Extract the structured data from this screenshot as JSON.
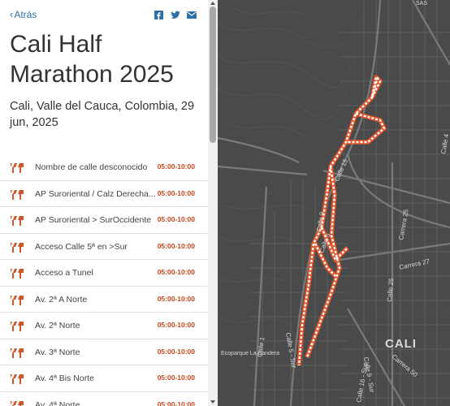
{
  "nav": {
    "back_label": "Atrás",
    "share_icons": [
      "facebook-icon",
      "twitter-icon",
      "email-icon"
    ]
  },
  "event": {
    "title": "Cali Half Marathon 2025",
    "subtitle": "Cali, Valle del Cauca, Colombia, 29 jun, 2025"
  },
  "closures": [
    {
      "name": "Nombre de calle desconocido",
      "time": "05:00-10:00"
    },
    {
      "name": "AP Suroriental / Calz Derecha...",
      "time": "05:00-10:00"
    },
    {
      "name": "AP Suroriental > SurOccidente",
      "time": "05:00-10:00"
    },
    {
      "name": "Acceso Calle 5ª en >Sur",
      "time": "05:00-10:00"
    },
    {
      "name": "Acceso a Tunel",
      "time": "05:00-10:00"
    },
    {
      "name": "Av. 2ª A Norte",
      "time": "05:00-10:00"
    },
    {
      "name": "Av. 2ª Norte",
      "time": "05:00-10:00"
    },
    {
      "name": "Av. 3ª Norte",
      "time": "05:00-10:00"
    },
    {
      "name": "Av. 4ª Bis Norte",
      "time": "05:00-10:00"
    },
    {
      "name": "Av. 4ª Norte",
      "time": "05:00-10:00"
    }
  ],
  "map": {
    "city_label": "CALI",
    "top_label": "SAS",
    "street_labels": [
      "Calle 15",
      "Calle 9",
      "Calle 5",
      "Carrera 25",
      "Carrera 27",
      "Calle 25",
      "Calle 1",
      "Calle 5 - Sur",
      "Calle 9 - Sur",
      "Calle 16 - Sur",
      "Carrera 50",
      "Ecoparque La Bandera",
      "Calle 4"
    ],
    "colors": {
      "background": "#4a4a4a",
      "route": "#ffffff",
      "route_border": "#e0522a",
      "roads": "#6a6a6a"
    }
  },
  "theme": {
    "accent": "#2f6fa8",
    "time_color": "#c8471c",
    "icon_color": "#d4542a"
  }
}
